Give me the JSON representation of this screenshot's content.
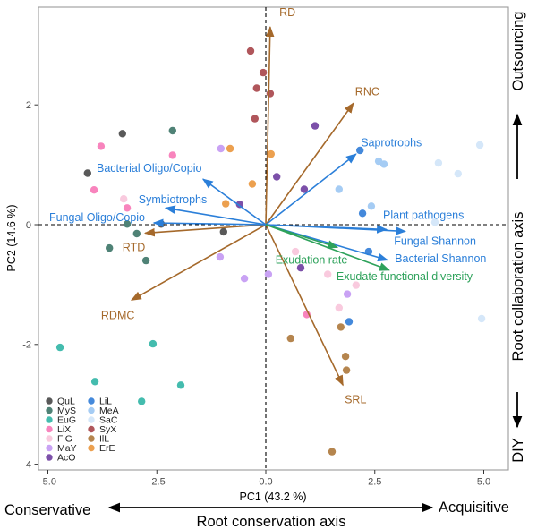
{
  "figure": {
    "bottom_axis": {
      "left_label": "Conservative",
      "right_label": "Acquisitive",
      "axis_label": "Root conservation axis"
    },
    "right_axis": {
      "top_label": "Outsourcing",
      "middle_label": "Root collaboration axis",
      "bottom_label": "DIY"
    }
  },
  "colors": {
    "panel_border": "#9b9b9b",
    "reference_line": "#000000",
    "annotation": "#000000",
    "tick_text": "#4d4d4d"
  },
  "chart_data": {
    "type": "scatter",
    "subtype": "pca-biplot",
    "xlabel": "PC1 (43.2 %)",
    "ylabel": "PC2 (14.6 %)",
    "xlim": [
      -5.2,
      5.6
    ],
    "ylim": [
      -4.1,
      3.6
    ],
    "x_ticks": [
      -5.0,
      -2.5,
      0.0,
      2.5,
      5.0
    ],
    "x_tick_labels": [
      "-5.0",
      "-2.5",
      "0.0",
      "2.5",
      "5.0"
    ],
    "y_ticks": [
      2,
      0,
      -2,
      -4
    ],
    "y_tick_labels": [
      "2",
      "0",
      "-2",
      "-4"
    ],
    "grid": false,
    "reference_lines": {
      "vertical_x": 0,
      "horizontal_y": 0,
      "style": "dashed"
    },
    "legend_position": "inside bottom-left",
    "series": [
      {
        "name": "QuL",
        "color": "#595959",
        "points": [
          [
            -3.29,
            1.52
          ],
          [
            -4.09,
            0.86
          ],
          [
            -2.4,
            0.01
          ],
          [
            -0.97,
            -0.12
          ]
        ]
      },
      {
        "name": "MyS",
        "color": "#4f8276",
        "points": [
          [
            -2.14,
            1.57
          ],
          [
            -3.18,
            0.01
          ],
          [
            -2.96,
            -0.15
          ],
          [
            -3.59,
            -0.39
          ],
          [
            -2.75,
            -0.6
          ]
        ]
      },
      {
        "name": "EuG",
        "color": "#44bcae",
        "points": [
          [
            -4.72,
            -2.05
          ],
          [
            -2.59,
            -1.99
          ],
          [
            -3.92,
            -2.62
          ],
          [
            -1.95,
            -2.68
          ],
          [
            -2.85,
            -2.95
          ]
        ]
      },
      {
        "name": "LiX",
        "color": "#f884bd",
        "points": [
          [
            -3.78,
            1.31
          ],
          [
            -2.14,
            1.16
          ],
          [
            -3.94,
            0.58
          ],
          [
            -3.18,
            0.28
          ],
          [
            0.94,
            -1.5
          ]
        ]
      },
      {
        "name": "FiG",
        "color": "#f9cade",
        "points": [
          [
            -3.26,
            0.43
          ],
          [
            0.68,
            -0.45
          ],
          [
            1.42,
            -0.83
          ],
          [
            2.07,
            -1.01
          ],
          [
            1.68,
            -1.39
          ]
        ]
      },
      {
        "name": "MaY",
        "color": "#c9a2f4",
        "points": [
          [
            -1.03,
            1.27
          ],
          [
            -1.05,
            -0.54
          ],
          [
            -0.49,
            -0.9
          ],
          [
            0.06,
            -0.83
          ],
          [
            1.87,
            -1.16
          ]
        ]
      },
      {
        "name": "AcO",
        "color": "#7c50a9",
        "points": [
          [
            1.13,
            1.65
          ],
          [
            0.25,
            0.8
          ],
          [
            0.88,
            0.59
          ],
          [
            -0.6,
            0.34
          ],
          [
            0.8,
            -0.72
          ]
        ]
      },
      {
        "name": "LiL",
        "color": "#4489db",
        "points": [
          [
            2.16,
            1.24
          ],
          [
            2.22,
            0.19
          ],
          [
            2.36,
            -0.45
          ],
          [
            1.91,
            -1.62
          ]
        ]
      },
      {
        "name": "MeA",
        "color": "#a5ccf4",
        "points": [
          [
            2.59,
            1.06
          ],
          [
            2.71,
            1.01
          ],
          [
            1.68,
            0.59
          ],
          [
            2.42,
            0.31
          ]
        ]
      },
      {
        "name": "SaC",
        "color": "#d5e7f9",
        "points": [
          [
            4.91,
            1.33
          ],
          [
            3.96,
            1.03
          ],
          [
            4.41,
            0.85
          ],
          [
            3.88,
            0.04
          ],
          [
            4.95,
            -1.57
          ]
        ]
      },
      {
        "name": "SyX",
        "color": "#b0565b",
        "points": [
          [
            -0.35,
            2.9
          ],
          [
            -0.06,
            2.54
          ],
          [
            -0.21,
            2.28
          ],
          [
            0.1,
            2.19
          ],
          [
            -0.25,
            1.77
          ]
        ]
      },
      {
        "name": "IlL",
        "color": "#b5854e",
        "points": [
          [
            0.57,
            -1.9
          ],
          [
            1.72,
            -1.71
          ],
          [
            1.83,
            -2.2
          ],
          [
            1.85,
            -2.43
          ],
          [
            1.52,
            -3.79
          ]
        ]
      },
      {
        "name": "ErE",
        "color": "#eca04f",
        "points": [
          [
            -0.82,
            1.27
          ],
          [
            0.12,
            1.18
          ],
          [
            -0.31,
            0.68
          ],
          [
            -0.92,
            0.35
          ]
        ]
      }
    ],
    "arrow_groups": {
      "root_trait": "#a5692b",
      "microbiome": "#2b7fd9",
      "exudate": "#2ea25b"
    },
    "loading_arrows": [
      {
        "label": "RD",
        "group": "root_trait",
        "tip": [
          0.1,
          3.3
        ],
        "label_pos": [
          0.31,
          3.48
        ]
      },
      {
        "label": "RNC",
        "group": "root_trait",
        "tip": [
          2.01,
          2.03
        ],
        "label_pos": [
          2.05,
          2.16
        ]
      },
      {
        "label": "RTD",
        "group": "root_trait",
        "tip": [
          -2.77,
          -0.14
        ],
        "label_pos": [
          -3.29,
          -0.44
        ]
      },
      {
        "label": "RDMC",
        "group": "root_trait",
        "tip": [
          -3.08,
          -1.26
        ],
        "label_pos": [
          -3.78,
          -1.58
        ]
      },
      {
        "label": "SRL",
        "group": "root_trait",
        "tip": [
          1.77,
          -2.68
        ],
        "label_pos": [
          1.81,
          -2.98
        ]
      },
      {
        "label": "Saprotrophs",
        "group": "microbiome",
        "tip": [
          2.07,
          1.18
        ],
        "label_pos": [
          2.18,
          1.31
        ]
      },
      {
        "label": "Bacterial Oligo/Copio",
        "group": "microbiome",
        "tip": [
          -1.44,
          0.76
        ],
        "label_pos": [
          -3.88,
          0.88
        ]
      },
      {
        "label": "Symbiotrophs",
        "group": "microbiome",
        "tip": [
          -2.3,
          0.28
        ],
        "label_pos": [
          -2.92,
          0.36
        ]
      },
      {
        "label": "Fungal Oligo/Copio",
        "group": "microbiome",
        "tip": [
          -2.57,
          0.03
        ],
        "label_pos": [
          -4.97,
          0.06
        ]
      },
      {
        "label": "Plant pathogens",
        "group": "microbiome",
        "tip": [
          2.77,
          -0.08
        ],
        "label_pos": [
          2.69,
          0.1
        ]
      },
      {
        "label": "Fungal Shannon",
        "group": "microbiome",
        "tip": [
          3.2,
          -0.11
        ],
        "label_pos": [
          2.94,
          -0.34
        ]
      },
      {
        "label": "Bacterial Shannon",
        "group": "microbiome",
        "tip": [
          2.79,
          -0.59
        ],
        "label_pos": [
          2.96,
          -0.63
        ]
      },
      {
        "label": "Exudation rate",
        "group": "exudate",
        "tip": [
          1.64,
          -0.38
        ],
        "label_pos": [
          0.22,
          -0.65
        ]
      },
      {
        "label": "Exudate functional diversity",
        "group": "exudate",
        "tip": [
          2.83,
          -0.76
        ],
        "label_pos": [
          1.62,
          -0.93
        ]
      }
    ]
  }
}
